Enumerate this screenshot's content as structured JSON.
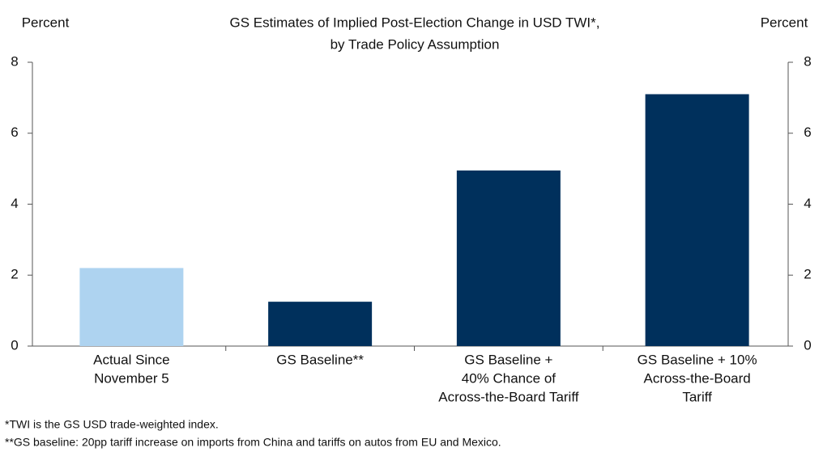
{
  "chart_data": {
    "type": "bar",
    "title": [
      "GS Estimates of Implied Post-Election Change in USD TWI*,",
      "by Trade Policy Assumption"
    ],
    "y_label": "Percent",
    "y2_label": "Percent",
    "categories": [
      [
        "Actual Since",
        "November 5"
      ],
      [
        "GS Baseline**"
      ],
      [
        "GS Baseline +",
        "40% Chance of",
        "Across-the-Board Tariff"
      ],
      [
        "GS Baseline + 10%",
        "Across-the-Board",
        "Tariff"
      ]
    ],
    "values": [
      2.2,
      1.25,
      4.95,
      7.1
    ],
    "colors": [
      "#aed3f0",
      "#00305c",
      "#00305c",
      "#00305c"
    ],
    "ylim": [
      0,
      8
    ],
    "yticks": [
      0,
      2,
      4,
      6,
      8
    ],
    "y2lim": [
      0,
      8
    ],
    "y2ticks": [
      0,
      2,
      4,
      6,
      8
    ],
    "footnotes": [
      "*TWI is the GS USD trade-weighted index.",
      "**GS baseline: 20pp tariff increase on imports from China and tariffs on autos from EU and Mexico."
    ]
  }
}
